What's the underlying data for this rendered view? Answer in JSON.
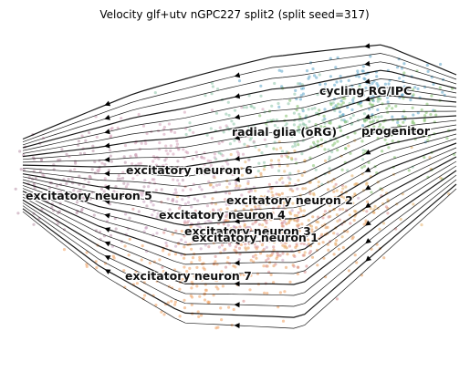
{
  "chart_data": {
    "type": "scatter",
    "title": "Velocity glf+utv nGPC227 split2 (split seed=317)",
    "xlabel": "",
    "ylabel": "",
    "axes_visible": false,
    "grid": false,
    "legend": "none",
    "overlay": "velocity streamlines",
    "clusters": [
      {
        "name": "cycling RG/IPC",
        "x": 0.78,
        "y": 0.82,
        "color": "#5ba4c9"
      },
      {
        "name": "radial glia (oRG)",
        "x": 0.63,
        "y": 0.7,
        "color": "#8cc4a8"
      },
      {
        "name": "progenitor",
        "x": 0.8,
        "y": 0.69,
        "color": "#7fbf6a"
      },
      {
        "name": "excitatory neuron 1",
        "x": 0.64,
        "y": 0.39,
        "color": "#e89a5a"
      },
      {
        "name": "excitatory neuron 2",
        "x": 0.67,
        "y": 0.5,
        "color": "#e6b06a"
      },
      {
        "name": "excitatory neuron 3",
        "x": 0.55,
        "y": 0.4,
        "color": "#d98c8c"
      },
      {
        "name": "excitatory neuron 4",
        "x": 0.47,
        "y": 0.45,
        "color": "#c9a0c0"
      },
      {
        "name": "excitatory neuron 5",
        "x": 0.13,
        "y": 0.53,
        "color": "#b892a8"
      },
      {
        "name": "excitatory neuron 6",
        "x": 0.37,
        "y": 0.6,
        "color": "#d4a0b8"
      },
      {
        "name": "excitatory neuron 7",
        "x": 0.41,
        "y": 0.24,
        "color": "#f0a060"
      }
    ],
    "label_texts": [
      "cycling RG/IPC",
      "radial glia (oRG)",
      "progenitor",
      "excitatory neuron 6",
      "excitatory neuron 5",
      "excitatory neuron 2",
      "excitatory neuron 4",
      "excitatory neuron 3",
      "excitatory neuron 1",
      "excitatory neuron 7"
    ]
  }
}
